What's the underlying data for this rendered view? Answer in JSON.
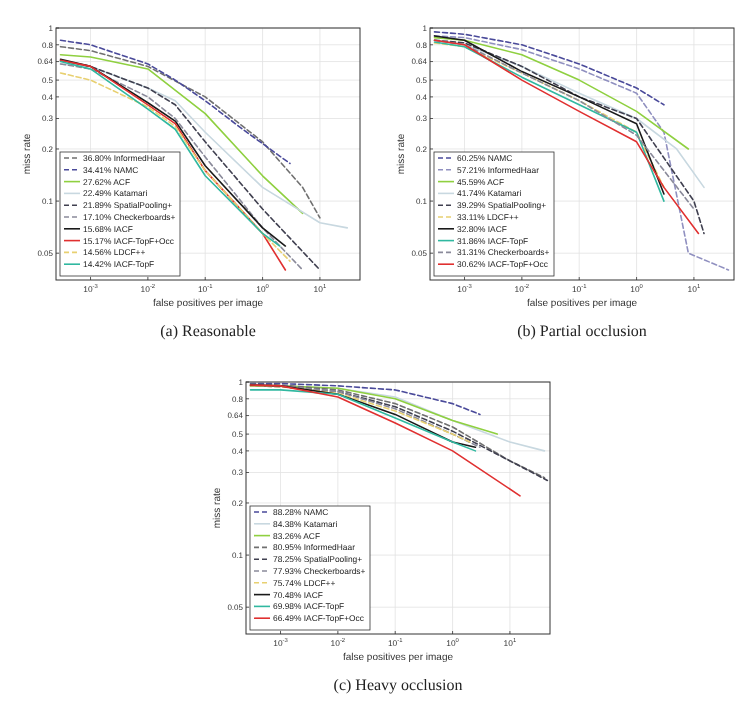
{
  "chart_data": [
    {
      "type": "line",
      "title": "(a) Reasonable",
      "xlabel": "false positives per image",
      "ylabel": "miss rate",
      "log": "xy",
      "grid": true,
      "legend": "bottom left",
      "marker": "none",
      "xlim": [
        0.00025,
        50
      ],
      "ylim": [
        0.035,
        1
      ],
      "xticks": [
        {
          "value": 0.001,
          "label": "10$^{-3}$"
        },
        {
          "value": 0.01,
          "label": "10$^{-2}$"
        },
        {
          "value": 0.1,
          "label": "10$^{-1}$"
        },
        {
          "value": 1,
          "label": "10$^{0}$"
        },
        {
          "value": 10,
          "label": "10$^{1}$"
        }
      ],
      "yticks": [
        0.05,
        0.1,
        0.2,
        0.3,
        0.4,
        0.5,
        0.64,
        0.8,
        1
      ],
      "series": [
        {
          "name": "36.80% InformedHaar",
          "color": "#707070",
          "line_style": "dashed",
          "x": [
            0.0003,
            0.001,
            0.01,
            0.1,
            1,
            5,
            10
          ],
          "values": [
            0.78,
            0.74,
            0.6,
            0.4,
            0.22,
            0.12,
            0.08
          ]
        },
        {
          "name": "34.41% NAMC",
          "color": "#4a4a9a",
          "line_style": "dashed",
          "x": [
            0.0003,
            0.001,
            0.01,
            0.03,
            0.1,
            0.45,
            3
          ],
          "values": [
            0.85,
            0.8,
            0.62,
            0.5,
            0.38,
            0.26,
            0.165
          ]
        },
        {
          "name": "27.62% ACF",
          "color": "#8fd040",
          "line_style": "solid",
          "x": [
            0.0003,
            0.001,
            0.01,
            0.1,
            1,
            5
          ],
          "values": [
            0.7,
            0.68,
            0.58,
            0.32,
            0.14,
            0.085
          ]
        },
        {
          "name": "22.49% Katamari",
          "color": "#c8d8e0",
          "line_style": "solid",
          "x": [
            0.0003,
            0.001,
            0.01,
            0.03,
            0.1,
            1,
            10,
            30
          ],
          "values": [
            0.62,
            0.6,
            0.45,
            0.38,
            0.25,
            0.12,
            0.075,
            0.07
          ]
        },
        {
          "name": "21.89% SpatialPooling+",
          "color": "#404050",
          "line_style": "dashed",
          "x": [
            0.0003,
            0.001,
            0.01,
            0.03,
            0.1,
            1,
            10
          ],
          "values": [
            0.65,
            0.6,
            0.45,
            0.36,
            0.22,
            0.09,
            0.04
          ]
        },
        {
          "name": "17.10% Checkerboards+",
          "color": "#8a8a9a",
          "line_style": "dashed",
          "x": [
            0.0003,
            0.001,
            0.01,
            0.03,
            0.1,
            1,
            5
          ],
          "values": [
            0.62,
            0.58,
            0.4,
            0.3,
            0.18,
            0.07,
            0.04
          ]
        },
        {
          "name": "15.68% IACF",
          "color": "#1a1a1a",
          "line_style": "solid",
          "x": [
            0.0003,
            0.001,
            0.01,
            0.03,
            0.1,
            1,
            2.5
          ],
          "values": [
            0.66,
            0.6,
            0.37,
            0.29,
            0.16,
            0.07,
            0.055
          ]
        },
        {
          "name": "15.17% IACF-TopF+Occ",
          "color": "#e03030",
          "line_style": "solid",
          "x": [
            0.0003,
            0.001,
            0.01,
            0.03,
            0.1,
            1,
            2.5
          ],
          "values": [
            0.65,
            0.6,
            0.36,
            0.28,
            0.15,
            0.065,
            0.04
          ]
        },
        {
          "name": "14.56% LDCF++",
          "color": "#e8d070",
          "line_style": "dashed",
          "x": [
            0.0003,
            0.001,
            0.01,
            0.03,
            0.1,
            1,
            3
          ],
          "values": [
            0.55,
            0.5,
            0.35,
            0.27,
            0.15,
            0.065,
            0.045
          ]
        },
        {
          "name": "14.42% IACF-TopF",
          "color": "#30b8a0",
          "line_style": "solid",
          "x": [
            0.0003,
            0.001,
            0.01,
            0.03,
            0.1,
            1,
            2
          ],
          "values": [
            0.64,
            0.58,
            0.34,
            0.26,
            0.14,
            0.065,
            0.055
          ]
        }
      ]
    },
    {
      "type": "line",
      "title": "(b) Partial occlusion",
      "xlabel": "false positives per image",
      "ylabel": "miss rate",
      "log": "xy",
      "grid": true,
      "legend": "bottom left",
      "marker": "none",
      "xlim": [
        0.00025,
        50
      ],
      "ylim": [
        0.035,
        1
      ],
      "xticks": [
        {
          "value": 0.001,
          "label": "10$^{-3}$"
        },
        {
          "value": 0.01,
          "label": "10$^{-2}$"
        },
        {
          "value": 0.1,
          "label": "10$^{-1}$"
        },
        {
          "value": 1,
          "label": "10$^{0}$"
        },
        {
          "value": 10,
          "label": "10$^{1}$"
        }
      ],
      "yticks": [
        0.05,
        0.1,
        0.2,
        0.3,
        0.4,
        0.5,
        0.64,
        0.8,
        1
      ],
      "series": [
        {
          "name": "60.25% NAMC",
          "color": "#4a4a9a",
          "line_style": "dashed",
          "x": [
            0.0003,
            0.001,
            0.01,
            0.1,
            1,
            3
          ],
          "values": [
            0.95,
            0.92,
            0.8,
            0.62,
            0.45,
            0.36
          ]
        },
        {
          "name": "57.21% InformedHaar",
          "color": "#9090c0",
          "line_style": "dashed",
          "x": [
            0.0003,
            0.001,
            0.01,
            0.1,
            1,
            3,
            8,
            40
          ],
          "values": [
            0.9,
            0.88,
            0.75,
            0.58,
            0.42,
            0.25,
            0.05,
            0.04
          ]
        },
        {
          "name": "45.59% ACF",
          "color": "#8fd040",
          "line_style": "solid",
          "x": [
            0.0003,
            0.001,
            0.01,
            0.1,
            1,
            8
          ],
          "values": [
            0.88,
            0.85,
            0.7,
            0.5,
            0.33,
            0.2
          ]
        },
        {
          "name": "41.74% Katamari",
          "color": "#c8d8e0",
          "line_style": "solid",
          "x": [
            0.0003,
            0.001,
            0.01,
            0.1,
            1,
            5,
            15
          ],
          "values": [
            0.85,
            0.8,
            0.6,
            0.42,
            0.3,
            0.2,
            0.12
          ]
        },
        {
          "name": "39.29% SpatialPooling+",
          "color": "#404050",
          "line_style": "dashed",
          "x": [
            0.0003,
            0.001,
            0.01,
            0.1,
            1,
            10,
            15
          ],
          "values": [
            0.85,
            0.82,
            0.6,
            0.4,
            0.3,
            0.1,
            0.065
          ]
        },
        {
          "name": "33.11% LDCF++",
          "color": "#e8d070",
          "line_style": "dashed",
          "x": [
            0.0003,
            0.001,
            0.01,
            0.1,
            1,
            3
          ],
          "values": [
            0.82,
            0.78,
            0.55,
            0.38,
            0.25,
            0.12
          ]
        },
        {
          "name": "32.80% IACF",
          "color": "#1a1a1a",
          "line_style": "solid",
          "x": [
            0.0003,
            0.001,
            0.01,
            0.1,
            1,
            3
          ],
          "values": [
            0.9,
            0.85,
            0.56,
            0.4,
            0.28,
            0.11
          ]
        },
        {
          "name": "31.86% IACF-TopF",
          "color": "#30b8a0",
          "line_style": "solid",
          "x": [
            0.0003,
            0.001,
            0.01,
            0.1,
            1,
            3
          ],
          "values": [
            0.83,
            0.78,
            0.52,
            0.36,
            0.25,
            0.1
          ]
        },
        {
          "name": "31.31% Checkerboards+",
          "color": "#8a8a9a",
          "line_style": "dashed",
          "x": [
            0.0003,
            0.001,
            0.01,
            0.1,
            1,
            10
          ],
          "values": [
            0.85,
            0.8,
            0.55,
            0.38,
            0.24,
            0.09
          ]
        },
        {
          "name": "30.62% IACF-TopF+Occ",
          "color": "#e03030",
          "line_style": "solid",
          "x": [
            0.0003,
            0.001,
            0.01,
            0.1,
            1,
            3,
            12
          ],
          "values": [
            0.85,
            0.8,
            0.5,
            0.33,
            0.22,
            0.12,
            0.065
          ]
        }
      ]
    },
    {
      "type": "line",
      "title": "(c) Heavy occlusion",
      "xlabel": "false positives per image",
      "ylabel": "miss rate",
      "log": "xy",
      "grid": true,
      "legend": "bottom left",
      "marker": "none",
      "xlim": [
        0.00025,
        50
      ],
      "ylim": [
        0.035,
        1
      ],
      "xticks": [
        {
          "value": 0.001,
          "label": "10$^{-3}$"
        },
        {
          "value": 0.01,
          "label": "10$^{-2}$"
        },
        {
          "value": 0.1,
          "label": "10$^{-1}$"
        },
        {
          "value": 1,
          "label": "10$^{0}$"
        },
        {
          "value": 10,
          "label": "10$^{1}$"
        }
      ],
      "yticks": [
        0.05,
        0.1,
        0.2,
        0.3,
        0.4,
        0.5,
        0.64,
        0.8,
        1
      ],
      "series": [
        {
          "name": "88.28% NAMC",
          "color": "#4a4a9a",
          "line_style": "dashed",
          "x": [
            0.0003,
            0.001,
            0.01,
            0.1,
            1,
            3
          ],
          "values": [
            0.98,
            0.98,
            0.95,
            0.9,
            0.75,
            0.65
          ]
        },
        {
          "name": "84.38% Katamari",
          "color": "#c8d8e0",
          "line_style": "solid",
          "x": [
            0.0003,
            0.001,
            0.01,
            0.1,
            1,
            10,
            40
          ],
          "values": [
            0.95,
            0.95,
            0.92,
            0.82,
            0.6,
            0.45,
            0.4
          ]
        },
        {
          "name": "83.26% ACF",
          "color": "#8fd040",
          "line_style": "solid",
          "x": [
            0.0003,
            0.001,
            0.01,
            0.1,
            1,
            6
          ],
          "values": [
            0.95,
            0.95,
            0.92,
            0.8,
            0.6,
            0.5
          ]
        },
        {
          "name": "80.95% InformedHaar",
          "color": "#707070",
          "line_style": "dashed",
          "x": [
            0.0003,
            0.001,
            0.01,
            0.1,
            1,
            10,
            40
          ],
          "values": [
            0.97,
            0.96,
            0.9,
            0.75,
            0.55,
            0.35,
            0.28
          ]
        },
        {
          "name": "78.25% SpatialPooling+",
          "color": "#404050",
          "line_style": "dashed",
          "x": [
            0.0003,
            0.001,
            0.01,
            0.1,
            1,
            10,
            45
          ],
          "values": [
            0.95,
            0.94,
            0.88,
            0.72,
            0.52,
            0.35,
            0.27
          ]
        },
        {
          "name": "77.93% Checkerboards+",
          "color": "#8a8a9a",
          "line_style": "dashed",
          "x": [
            0.0003,
            0.001,
            0.01,
            0.1,
            1,
            3
          ],
          "values": [
            0.96,
            0.95,
            0.88,
            0.7,
            0.5,
            0.42
          ]
        },
        {
          "name": "75.74% LDCF++",
          "color": "#e8d070",
          "line_style": "dashed",
          "x": [
            0.0003,
            0.001,
            0.01,
            0.1,
            1,
            2
          ],
          "values": [
            0.95,
            0.94,
            0.86,
            0.68,
            0.5,
            0.45
          ]
        },
        {
          "name": "70.48% IACF",
          "color": "#1a1a1a",
          "line_style": "solid",
          "x": [
            0.0003,
            0.001,
            0.01,
            0.1,
            1,
            2.5
          ],
          "values": [
            0.96,
            0.95,
            0.85,
            0.65,
            0.45,
            0.42
          ]
        },
        {
          "name": "69.98% IACF-TopF",
          "color": "#30b8a0",
          "line_style": "solid",
          "x": [
            0.0003,
            0.001,
            0.01,
            0.1,
            1,
            2.5
          ],
          "values": [
            0.9,
            0.9,
            0.85,
            0.62,
            0.45,
            0.4
          ]
        },
        {
          "name": "66.49% IACF-TopF+Occ",
          "color": "#e03030",
          "line_style": "solid",
          "x": [
            0.0003,
            0.001,
            0.01,
            0.1,
            1,
            15
          ],
          "values": [
            0.96,
            0.95,
            0.82,
            0.58,
            0.4,
            0.22
          ]
        }
      ]
    }
  ]
}
